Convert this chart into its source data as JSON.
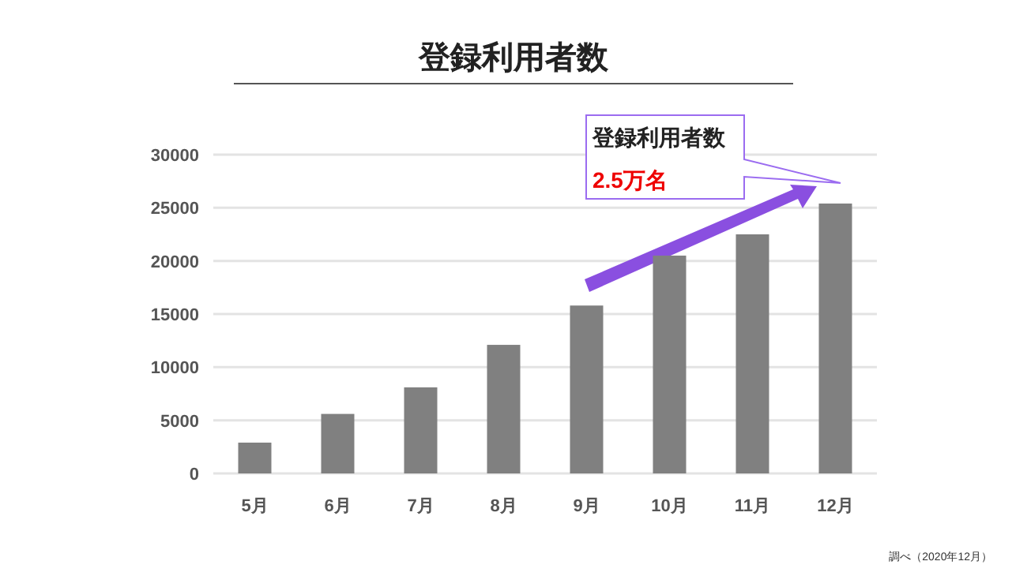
{
  "chart_data": {
    "type": "bar",
    "title": "登録利用者数",
    "categories": [
      "5月",
      "6月",
      "7月",
      "8月",
      "9月",
      "10月",
      "11月",
      "12月"
    ],
    "values": [
      2900,
      5600,
      8100,
      12100,
      15800,
      20500,
      22500,
      25400
    ],
    "color": "#808080",
    "ylim": [
      0,
      30000
    ],
    "yticks": [
      0,
      5000,
      10000,
      15000,
      20000,
      25000,
      30000
    ],
    "grid": "y",
    "annotations": [
      "登録利用者数",
      "2.5万名",
      "調べ（2020年12月）"
    ]
  }
}
